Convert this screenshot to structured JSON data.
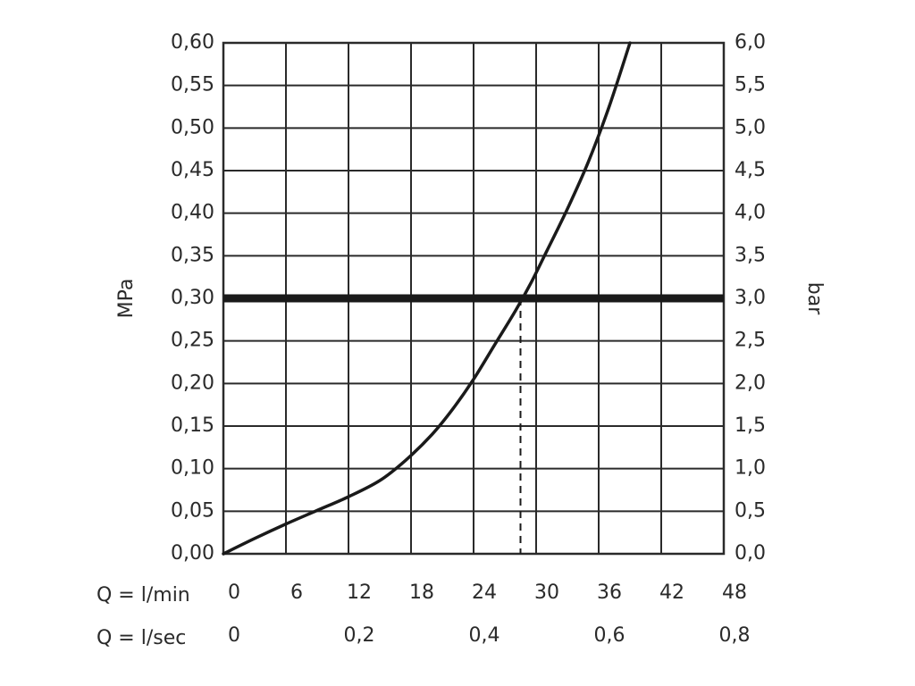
{
  "chart_data": {
    "type": "line",
    "y_left": {
      "label": "MPa",
      "range": [
        0,
        0.6
      ],
      "ticks": [
        "0,00",
        "0,05",
        "0,10",
        "0,15",
        "0,20",
        "0,25",
        "0,30",
        "0,35",
        "0,40",
        "0,45",
        "0,50",
        "0,55",
        "0,60"
      ]
    },
    "y_right": {
      "label": "bar",
      "range": [
        0,
        6
      ],
      "ticks": [
        "0,0",
        "0,5",
        "1,0",
        "1,5",
        "2,0",
        "2,5",
        "3,0",
        "3,5",
        "4,0",
        "4,5",
        "5,0",
        "5,5",
        "6,0"
      ]
    },
    "x_primary": {
      "label": "Q = l/min",
      "range": [
        0,
        48
      ],
      "ticks": [
        "0",
        "6",
        "12",
        "18",
        "24",
        "30",
        "36",
        "42",
        "48"
      ]
    },
    "x_secondary": {
      "label": "Q = l/sec",
      "ticks": [
        "0",
        "0,2",
        "0,4",
        "0,6",
        "0,8"
      ]
    },
    "grid": true,
    "series": [
      {
        "x": [
          0,
          3,
          6,
          9,
          12,
          15,
          17.5,
          20,
          22,
          24,
          26,
          28,
          29.5,
          31,
          33,
          35,
          37,
          39
        ],
        "y": [
          0.0,
          0.018,
          0.035,
          0.051,
          0.067,
          0.086,
          0.11,
          0.14,
          0.17,
          0.205,
          0.245,
          0.285,
          0.318,
          0.355,
          0.405,
          0.46,
          0.525,
          0.6
        ]
      }
    ],
    "reference_line": {
      "y": 0.3,
      "style": "thick"
    },
    "marker": {
      "x": 28.5,
      "y": 0.3,
      "style": "dashed"
    }
  }
}
